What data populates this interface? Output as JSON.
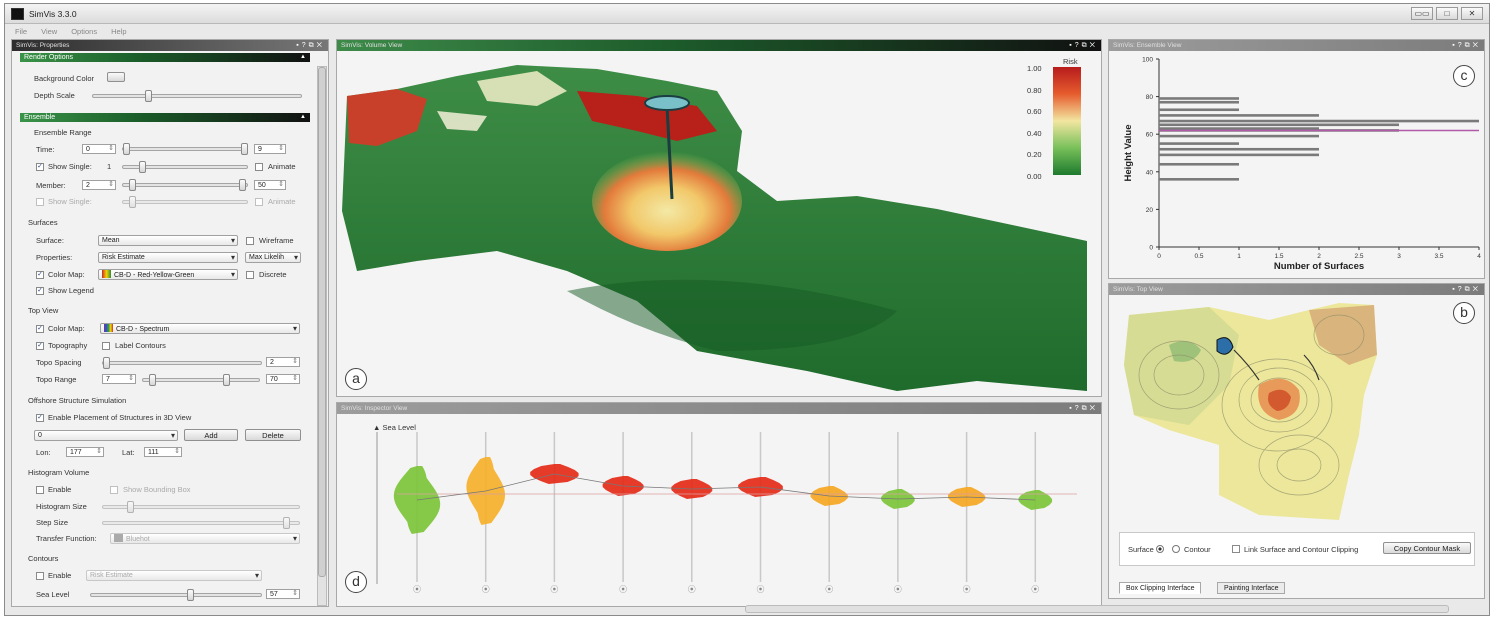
{
  "app": {
    "title": "SimVis 3.3.0",
    "window_buttons": [
      "▭▭",
      "□",
      "✕"
    ]
  },
  "menu": [
    "File",
    "View",
    "Options",
    "Help"
  ],
  "props": {
    "title": "SimVis: Properties",
    "render_options": {
      "header": "Render Options",
      "background_color_label": "Background Color",
      "depth_scale_label": "Depth Scale"
    },
    "ensemble": {
      "header": "Ensemble",
      "range_label": "Ensemble Range",
      "time_label": "Time:",
      "time_min": "0",
      "time_max": "9",
      "show_single_label": "Show Single:",
      "show_single_value": "1",
      "animate_label": "Animate",
      "member_label": "Member:",
      "member_min": "2",
      "member_max": "50",
      "show_single2_label": "Show Single:",
      "animate2_label": "Animate"
    },
    "surfaces": {
      "header": "Surfaces",
      "surface_label": "Surface:",
      "surface_value": "Mean",
      "wireframe_label": "Wireframe",
      "properties_label": "Properties:",
      "properties_value": "Risk Estimate",
      "properties_extra": "Max Likelih",
      "colormap_label": "Color Map:",
      "colormap_value": "CB-D - Red-Yellow-Green",
      "discrete_label": "Discrete",
      "show_legend_label": "Show Legend"
    },
    "topview": {
      "header": "Top View",
      "colormap_label": "Color Map:",
      "colormap_value": "CB-D - Spectrum",
      "topography_label": "Topography",
      "label_contours_label": "Label Contours",
      "topo_spacing_label": "Topo Spacing",
      "topo_spacing_value": "2",
      "topo_range_label": "Topo Range",
      "topo_range_min": "7",
      "topo_range_max": "70"
    },
    "offshore": {
      "header": "Offshore Structure Simulation",
      "enable_placement_label": "Enable Placement of Structures in 3D View",
      "structure_value": "0",
      "add_label": "Add",
      "delete_label": "Delete",
      "lon_label": "Lon:",
      "lon_value": "177",
      "lat_label": "Lat:",
      "lat_value": "111"
    },
    "histogram": {
      "header": "Histogram Volume",
      "enable_label": "Enable",
      "bounding_box_label": "Show Bounding Box",
      "size_label": "Histogram Size",
      "step_label": "Step Size",
      "transfer_label": "Transfer Function:",
      "transfer_value": "Bluehot"
    },
    "contours": {
      "header": "Contours",
      "enable_label": "Enable",
      "value": "Risk Estimate",
      "sea_level_label": "Sea Level",
      "sea_level_value": "57"
    }
  },
  "volume_view": {
    "title": "SimVis: Volume View",
    "label": "a",
    "legend": {
      "title": "Risk",
      "ticks": [
        "1.00",
        "0.80",
        "0.60",
        "0.40",
        "0.20",
        "0.00"
      ],
      "colors": [
        "#b71c1c",
        "#e65c2e",
        "#f2e6a0",
        "#78c05a",
        "#1e7a2e"
      ]
    }
  },
  "inspector_view": {
    "title": "SimVis: Inspector View",
    "label": "d",
    "sea_level_label": "Sea Level",
    "colors": [
      "#7cc43a",
      "#f5b02a",
      "#e52a18",
      "#e52a18",
      "#e52a18",
      "#e52a18",
      "#f5a623",
      "#7cc43a",
      "#f5a623",
      "#7cc43a"
    ]
  },
  "ensemble_view": {
    "title": "SimVis: Ensemble View",
    "label": "c"
  },
  "top_view": {
    "title": "SimVis: Top View",
    "label": "b",
    "surface_label": "Surface",
    "contour_label": "Contour",
    "link_label": "Link Surface and Contour Clipping",
    "copy_mask_label": "Copy Contour Mask",
    "tabs": [
      "Box Clipping Interface",
      "Painting Interface"
    ]
  },
  "chart_data": {
    "type": "bar",
    "orientation": "horizontal",
    "xlabel": "Number of Surfaces",
    "ylabel": "Height Value",
    "xlim": [
      0,
      4
    ],
    "ylim": [
      0,
      100
    ],
    "xticks": [
      "0",
      "0.5",
      "1",
      "1.5",
      "2",
      "2.5",
      "3",
      "3.5",
      "4"
    ],
    "yticks": [
      "0",
      "20",
      "40",
      "60",
      "80",
      "100"
    ],
    "bars": [
      {
        "y": 36,
        "value": 1
      },
      {
        "y": 44,
        "value": 1
      },
      {
        "y": 49,
        "value": 2
      },
      {
        "y": 52,
        "value": 2
      },
      {
        "y": 55,
        "value": 1
      },
      {
        "y": 59,
        "value": 2
      },
      {
        "y": 62,
        "value": 3
      },
      {
        "y": 63,
        "value": 2
      },
      {
        "y": 65,
        "value": 3
      },
      {
        "y": 67,
        "value": 4
      },
      {
        "y": 70,
        "value": 2
      },
      {
        "y": 73,
        "value": 1
      },
      {
        "y": 77,
        "value": 1
      },
      {
        "y": 79,
        "value": 1
      }
    ],
    "reference_line_y": 62,
    "reference_line_color": "#b05aa8"
  }
}
